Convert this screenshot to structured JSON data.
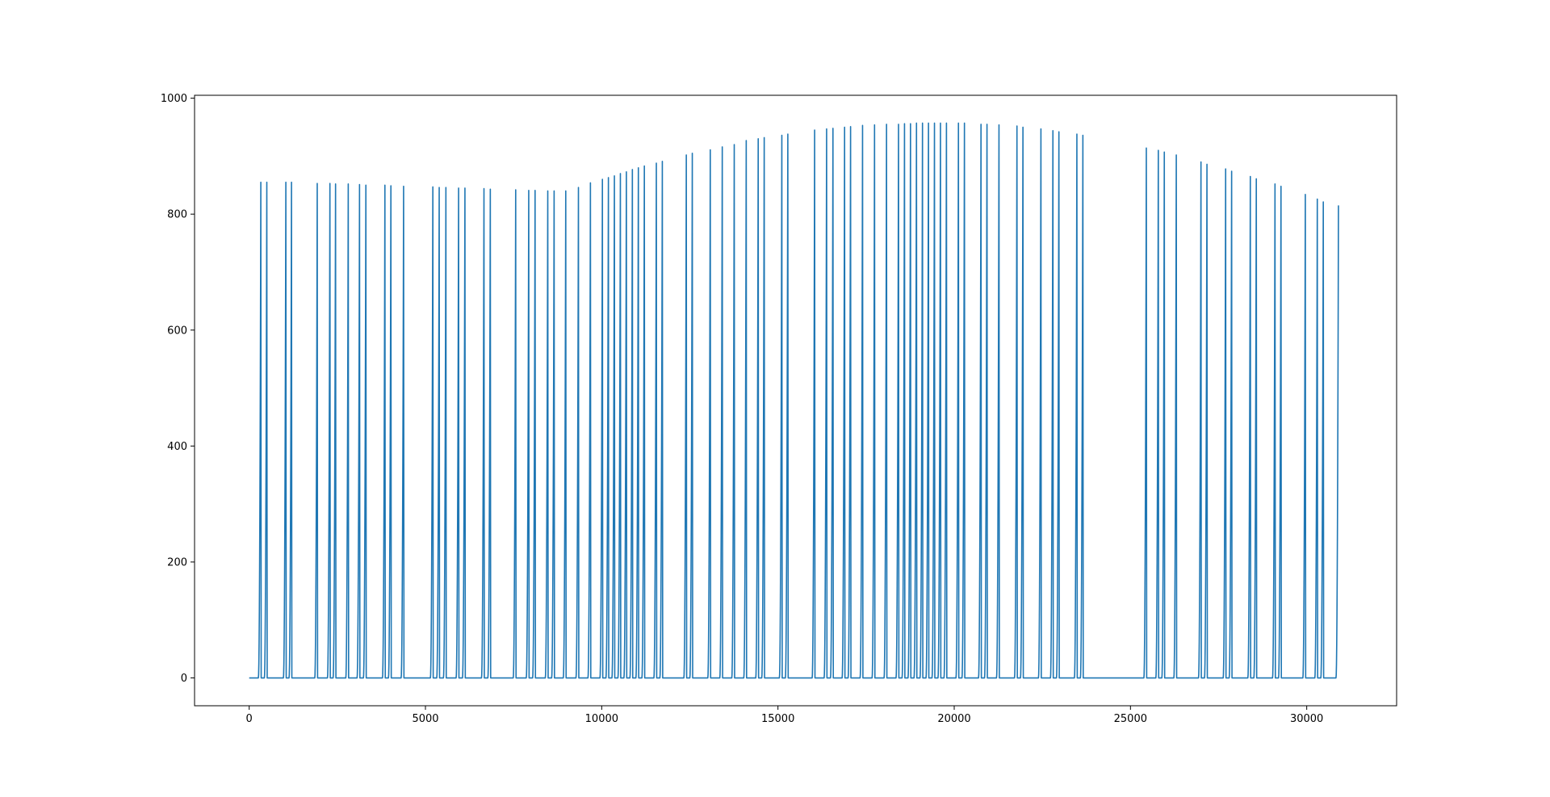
{
  "chart_data": {
    "type": "line",
    "title": "",
    "xlabel": "",
    "ylabel": "",
    "xlim": [
      -1550,
      32550
    ],
    "ylim": [
      -48,
      1005
    ],
    "x_ticks": [
      0,
      5000,
      10000,
      15000,
      20000,
      25000,
      30000
    ],
    "y_ticks": [
      0,
      200,
      400,
      600,
      800,
      1000
    ],
    "x_tick_labels": [
      "0",
      "5000",
      "10000",
      "15000",
      "20000",
      "25000",
      "30000"
    ],
    "y_tick_labels": [
      "0",
      "200",
      "400",
      "600",
      "800",
      "1000"
    ],
    "grid": false,
    "legend": "none",
    "series": [
      {
        "color": "#1f77b4",
        "spike_rise_duration": 70,
        "spike_return_duration": 10,
        "spike_times": [
          330,
          500,
          1040,
          1200,
          1930,
          2290,
          2450,
          2810,
          3130,
          3310,
          3850,
          4020,
          4380,
          5210,
          5390,
          5580,
          5940,
          6120,
          6660,
          6840,
          7560,
          7930,
          8110,
          8470,
          8650,
          8980,
          9340,
          9680,
          10020,
          10190,
          10360,
          10530,
          10700,
          10870,
          11040,
          11210,
          11550,
          11720,
          12400,
          12570,
          13080,
          13420,
          13760,
          14100,
          14440,
          14610,
          15110,
          15280,
          16040,
          16380,
          16560,
          16890,
          17060,
          17400,
          17740,
          18080,
          18420,
          18590,
          18760,
          18930,
          19100,
          19270,
          19440,
          19610,
          19780,
          20120,
          20290,
          20760,
          20930,
          21270,
          21780,
          21950,
          22460,
          22800,
          22970,
          23480,
          23650,
          25450,
          25790,
          25960,
          26300,
          27000,
          27170,
          27700,
          27870,
          28400,
          28570,
          29100,
          29270,
          29960,
          30300,
          30470,
          30900
        ],
        "spike_peaks": [
          855,
          855,
          855,
          855,
          853,
          853,
          852,
          852,
          851,
          850,
          850,
          849,
          848,
          847,
          846,
          846,
          845,
          845,
          844,
          843,
          842,
          841,
          841,
          840,
          840,
          840,
          846,
          854,
          860,
          863,
          866,
          870,
          873,
          877,
          880,
          883,
          888,
          891,
          902,
          905,
          911,
          916,
          920,
          927,
          930,
          932,
          936,
          938,
          945,
          947,
          948,
          950,
          951,
          953,
          954,
          955,
          955,
          956,
          956,
          957,
          957,
          957,
          957,
          957,
          957,
          957,
          957,
          955,
          955,
          954,
          952,
          950,
          947,
          944,
          942,
          938,
          936,
          914,
          910,
          907,
          902,
          890,
          886,
          878,
          874,
          865,
          861,
          852,
          848,
          834,
          826,
          821,
          815
        ]
      }
    ]
  }
}
